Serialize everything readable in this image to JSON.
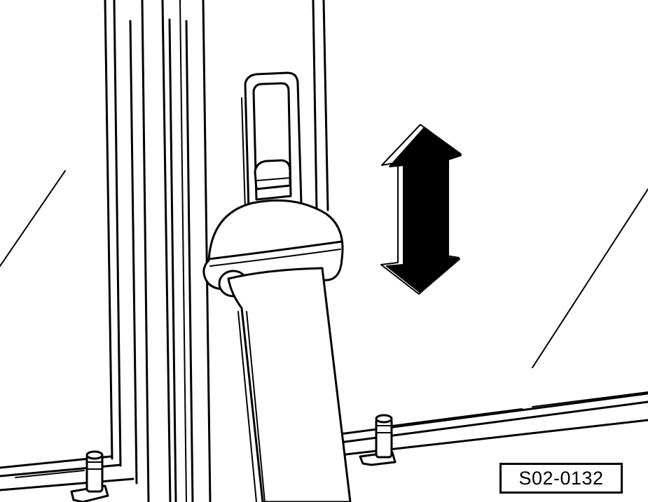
{
  "figure": {
    "reference_code": "S02-0132"
  },
  "icons": {
    "adjust_arrow": "up-down-double-arrow-icon"
  },
  "colors": {
    "line": "#000000",
    "background": "#ffffff"
  }
}
